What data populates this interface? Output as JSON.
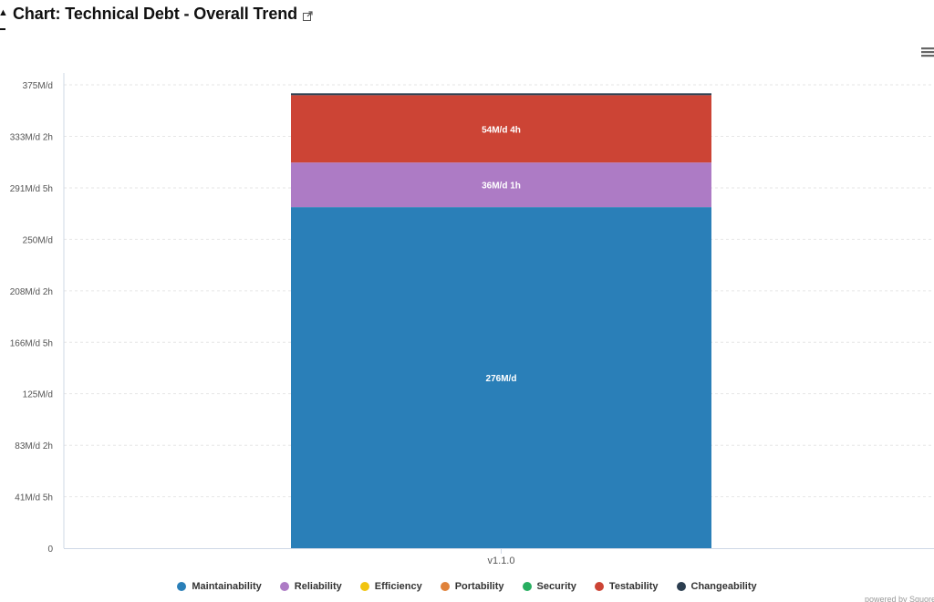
{
  "header": {
    "title": "Chart: Technical Debt - Overall Trend",
    "chart_icon": "chart-icon",
    "link_icon": "external-link-icon"
  },
  "menu": {
    "icon": "hamburger-menu-icon"
  },
  "credits": "powered by Squore",
  "colors": {
    "Maintainability": "#2a7fb8",
    "Reliability": "#ad7bc5",
    "Efficiency": "#f1c40f",
    "Portability": "#e0823a",
    "Security": "#27ae60",
    "Testability": "#cc4435",
    "Changeability": "#2c3e50"
  },
  "chart_data": {
    "type": "bar",
    "stacked": true,
    "categories": [
      "v1.1.0"
    ],
    "y_tick_labels": [
      "0",
      "41M/d 5h",
      "83M/d 2h",
      "125M/d",
      "166M/d 5h",
      "208M/d 2h",
      "250M/d",
      "291M/d 5h",
      "333M/d 2h",
      "375M/d"
    ],
    "y_ticks": [
      0,
      41.625,
      83.25,
      125,
      166.625,
      208.25,
      250,
      291.625,
      333.25,
      375
    ],
    "ylim": [
      0,
      375
    ],
    "grid": true,
    "legend_position": "bottom",
    "series": [
      {
        "name": "Maintainability",
        "values": [
          276
        ],
        "label": "276M/d"
      },
      {
        "name": "Reliability",
        "values": [
          36.125
        ],
        "label": "36M/d 1h"
      },
      {
        "name": "Efficiency",
        "values": [
          0
        ],
        "label": ""
      },
      {
        "name": "Portability",
        "values": [
          0
        ],
        "label": ""
      },
      {
        "name": "Security",
        "values": [
          0
        ],
        "label": ""
      },
      {
        "name": "Testability",
        "values": [
          54.5
        ],
        "label": "54M/d 4h"
      },
      {
        "name": "Changeability",
        "values": [
          1.5
        ],
        "label": ""
      }
    ]
  }
}
